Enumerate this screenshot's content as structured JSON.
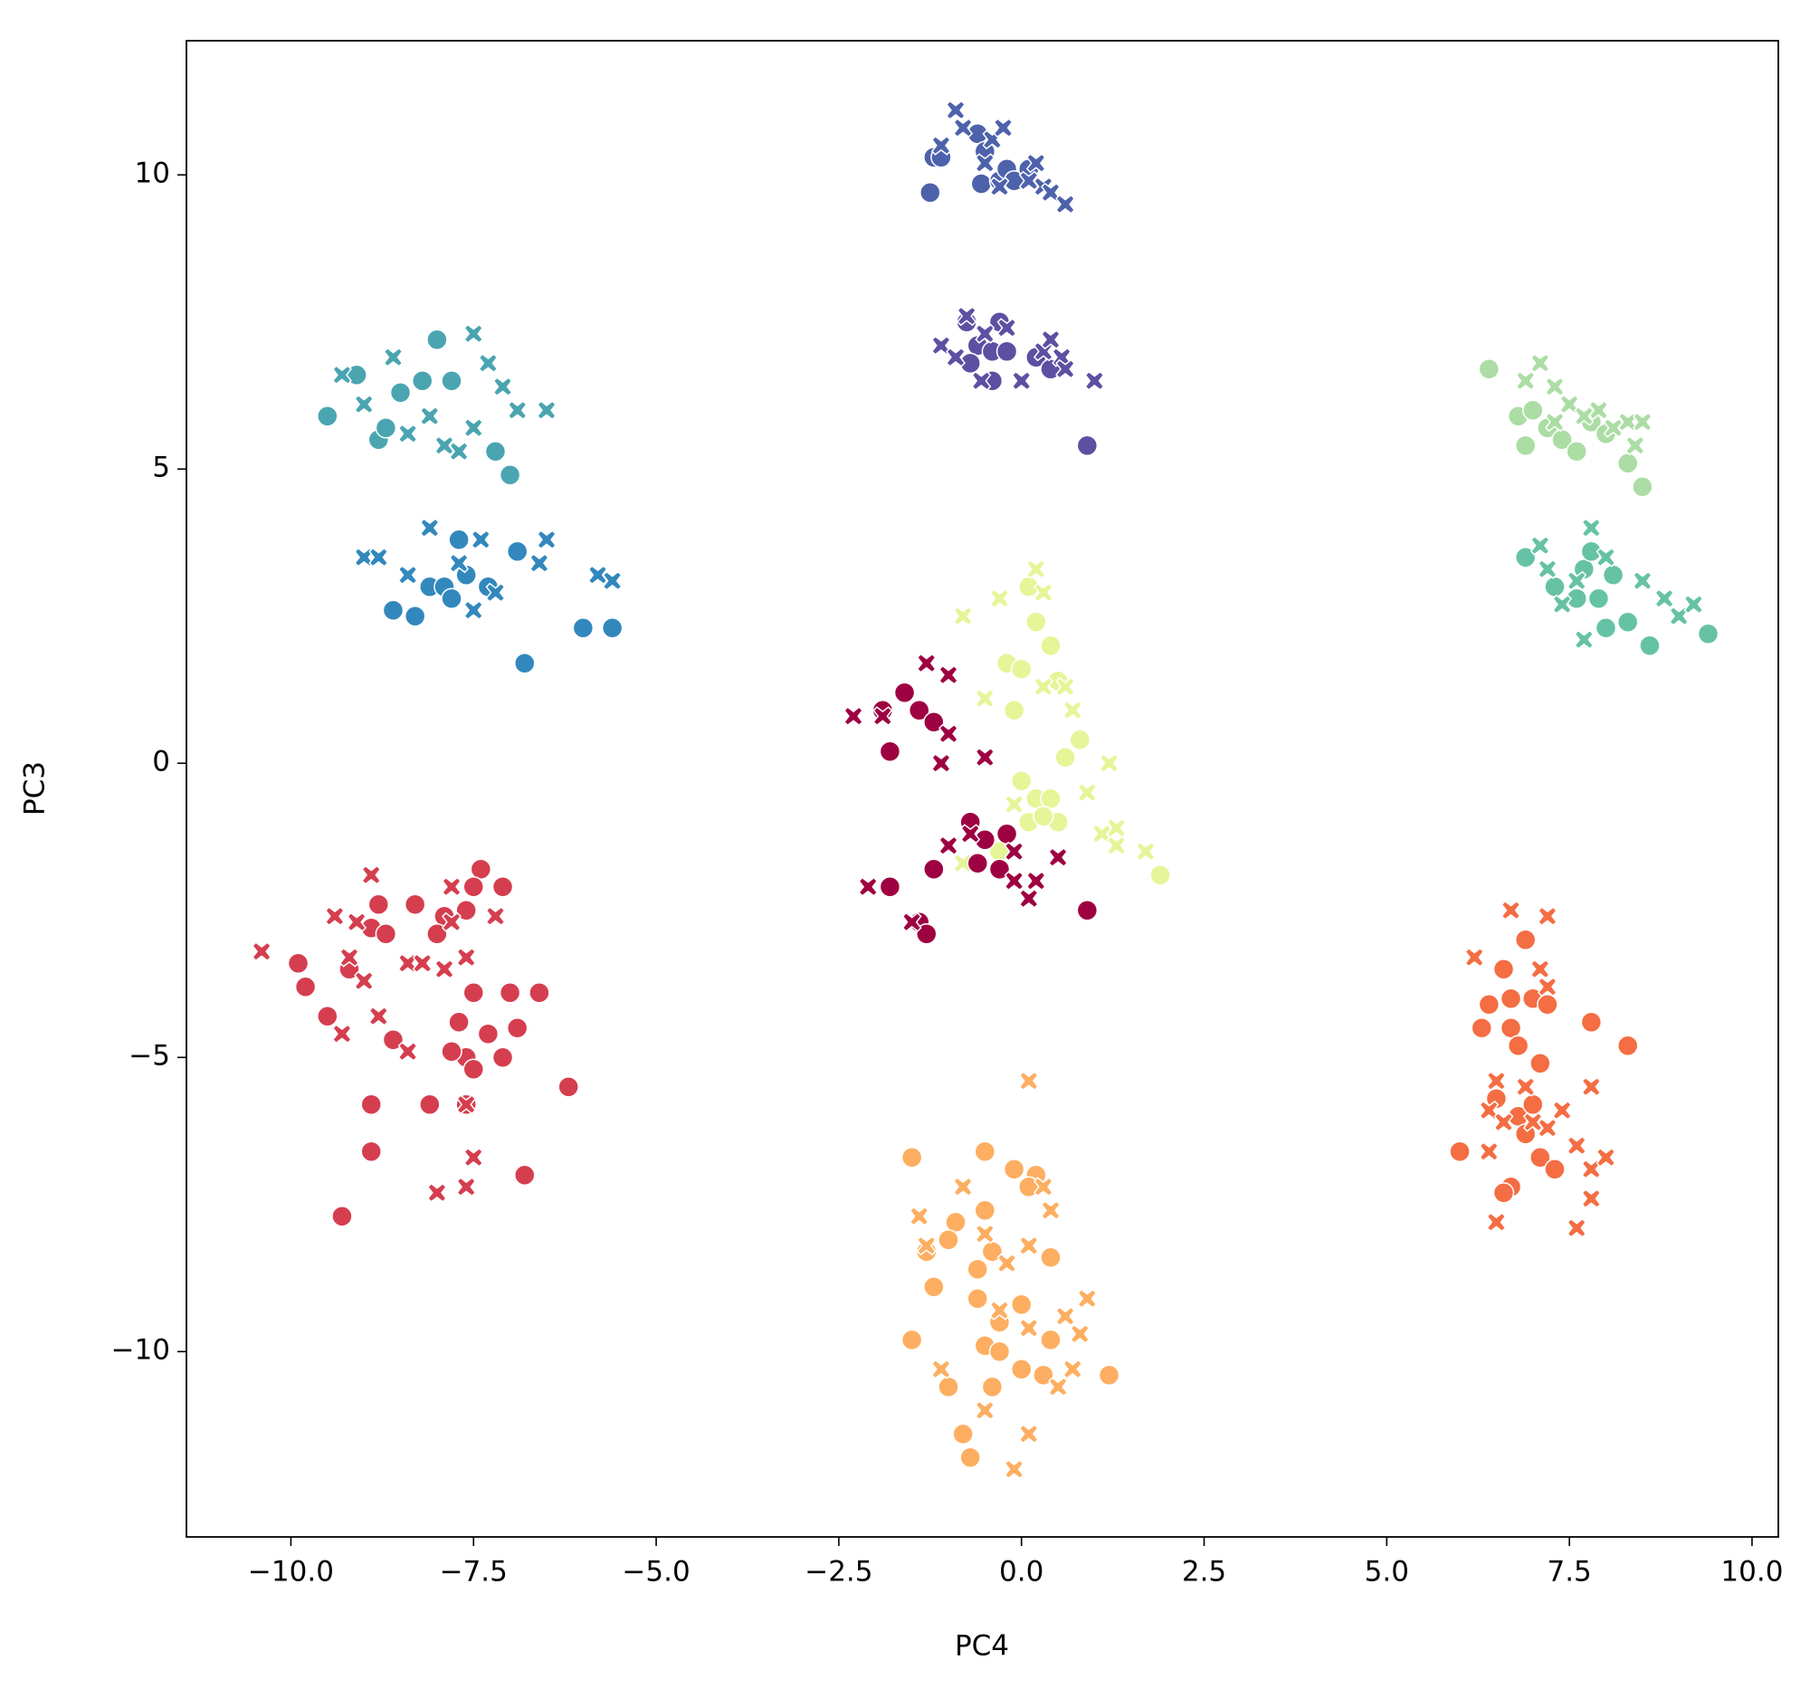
{
  "chart_data": {
    "type": "scatter",
    "x_label": "PC4",
    "y_label": "PC3",
    "xlim": [
      -11.43,
      10.36
    ],
    "ylim": [
      -13.15,
      12.28
    ],
    "xticks": [
      {
        "value": -10,
        "label": "−10.0"
      },
      {
        "value": -7.5,
        "label": "−7.5"
      },
      {
        "value": -5,
        "label": "−5.0"
      },
      {
        "value": -2.5,
        "label": "−2.5"
      },
      {
        "value": 0,
        "label": "0.0"
      },
      2.5,
      {
        "value": 5,
        "label": "5.0"
      },
      7.5,
      {
        "value": 10,
        "label": "10.0"
      }
    ],
    "yticks": [
      {
        "value": -10,
        "label": "−10"
      },
      {
        "value": -5,
        "label": "−5"
      },
      0,
      5,
      10
    ],
    "series": [
      {
        "color": "#4e62ab",
        "marker": "o",
        "x": [
          -1.25,
          -1.2,
          -1.1,
          -0.6,
          -0.5,
          -0.55,
          -0.3,
          -0.2,
          -0.1,
          0.1
        ],
        "y": [
          9.7,
          10.3,
          10.3,
          10.7,
          10.4,
          9.85,
          9.9,
          10.1,
          9.9,
          10.1
        ]
      },
      {
        "color": "#4e62ab",
        "marker": "x",
        "x": [
          -0.9,
          -0.8,
          -1.1,
          -0.4,
          -0.25,
          -0.5,
          0.2,
          0.1,
          0.3,
          0.4,
          0.6,
          -0.3
        ],
        "y": [
          11.1,
          10.8,
          10.5,
          10.6,
          10.8,
          10.2,
          10.2,
          9.9,
          9.8,
          9.7,
          9.5,
          9.8
        ]
      },
      {
        "color": "#5e4fa2",
        "marker": "o",
        "x": [
          -0.75,
          -0.3,
          -0.6,
          -0.4,
          -0.2,
          -0.4,
          0.2,
          0.4,
          0.9,
          -0.7
        ],
        "y": [
          7.5,
          7.5,
          7.1,
          7.0,
          7.0,
          6.5,
          6.9,
          6.7,
          5.4,
          6.8
        ]
      },
      {
        "color": "#5e4fa2",
        "marker": "x",
        "x": [
          -0.75,
          -1.1,
          -0.9,
          -0.55,
          0.0,
          0.3,
          0.55,
          0.6,
          1.0,
          0.4,
          -0.2,
          -0.5
        ],
        "y": [
          7.6,
          7.1,
          6.9,
          6.5,
          6.5,
          7.0,
          6.9,
          6.7,
          6.5,
          7.2,
          7.4,
          7.3
        ]
      },
      {
        "color": "#4aa5b1",
        "marker": "o",
        "x": [
          -9.5,
          -9.1,
          -8.8,
          -8.7,
          -8.5,
          -8.2,
          -8.0,
          -7.8,
          -7.2,
          -7.0
        ],
        "y": [
          5.9,
          6.6,
          5.5,
          5.7,
          6.3,
          6.5,
          7.2,
          6.5,
          5.3,
          4.9
        ]
      },
      {
        "color": "#4aa5b1",
        "marker": "x",
        "x": [
          -9.3,
          -9.0,
          -8.6,
          -8.4,
          -8.1,
          -7.9,
          -7.7,
          -7.5,
          -7.5,
          -7.3,
          -7.1,
          -6.9,
          -6.5
        ],
        "y": [
          6.6,
          6.1,
          6.9,
          5.6,
          5.9,
          5.4,
          5.3,
          7.3,
          5.7,
          6.8,
          6.4,
          6.0,
          6.0
        ]
      },
      {
        "color": "#3288bd",
        "marker": "o",
        "x": [
          -8.6,
          -8.3,
          -8.1,
          -7.9,
          -7.8,
          -7.7,
          -7.6,
          -7.3,
          -6.9,
          -6.8,
          -6.0,
          -5.6
        ],
        "y": [
          2.6,
          2.5,
          3.0,
          3.0,
          2.8,
          3.8,
          3.2,
          3.0,
          3.6,
          1.7,
          2.3,
          2.3
        ]
      },
      {
        "color": "#3288bd",
        "marker": "x",
        "x": [
          -9.0,
          -8.8,
          -8.4,
          -8.1,
          -7.7,
          -7.4,
          -7.5,
          -7.2,
          -6.6,
          -6.5,
          -5.8,
          -5.6
        ],
        "y": [
          3.5,
          3.5,
          3.2,
          4.0,
          3.4,
          3.8,
          2.6,
          2.9,
          3.4,
          3.8,
          3.2,
          3.1
        ]
      },
      {
        "color": "#abdda4",
        "marker": "o",
        "x": [
          6.4,
          6.8,
          6.9,
          7.2,
          7.4,
          7.6,
          7.8,
          8.0,
          8.3,
          8.5,
          7.0
        ],
        "y": [
          6.7,
          5.9,
          5.4,
          5.7,
          5.5,
          5.3,
          5.8,
          5.6,
          5.1,
          4.7,
          6.0
        ]
      },
      {
        "color": "#abdda4",
        "marker": "x",
        "x": [
          6.9,
          7.1,
          7.3,
          7.5,
          7.7,
          7.9,
          8.1,
          8.3,
          8.5,
          8.4,
          7.3
        ],
        "y": [
          6.5,
          6.8,
          6.4,
          6.1,
          5.9,
          6.0,
          5.7,
          5.8,
          5.8,
          5.4,
          5.8
        ]
      },
      {
        "color": "#66c2a5",
        "marker": "o",
        "x": [
          6.9,
          7.3,
          7.6,
          7.7,
          7.8,
          7.9,
          8.0,
          8.1,
          8.3,
          8.6,
          9.4
        ],
        "y": [
          3.5,
          3.0,
          2.8,
          3.3,
          3.6,
          2.8,
          2.3,
          3.2,
          2.4,
          2.0,
          2.2
        ]
      },
      {
        "color": "#66c2a5",
        "marker": "x",
        "x": [
          7.1,
          7.4,
          7.6,
          7.8,
          7.7,
          8.0,
          8.5,
          8.8,
          9.0,
          9.2,
          7.2
        ],
        "y": [
          3.7,
          2.7,
          3.1,
          4.0,
          2.1,
          3.5,
          3.1,
          2.8,
          2.5,
          2.7,
          3.3
        ]
      },
      {
        "color": "#e6f598",
        "marker": "o",
        "x": [
          -0.2,
          0.0,
          0.1,
          0.2,
          0.4,
          0.5,
          -0.1,
          0.8,
          0.6,
          0.0,
          0.2,
          0.4,
          0.1,
          0.5,
          -0.3,
          1.9,
          0.3
        ],
        "y": [
          1.7,
          1.6,
          3.0,
          2.4,
          2.0,
          1.4,
          0.9,
          0.4,
          0.1,
          -0.3,
          -0.6,
          -0.6,
          -1.0,
          -1.0,
          -1.5,
          -1.9,
          -0.9
        ]
      },
      {
        "color": "#e6f598",
        "marker": "x",
        "x": [
          -0.8,
          -0.3,
          0.3,
          0.2,
          -0.5,
          0.3,
          0.6,
          0.7,
          1.2,
          0.9,
          1.1,
          1.3,
          1.7,
          1.3,
          -0.1,
          -0.8
        ],
        "y": [
          2.5,
          2.8,
          2.9,
          3.3,
          1.1,
          1.3,
          1.3,
          0.9,
          0.0,
          -0.5,
          -1.2,
          -1.1,
          -1.5,
          -1.4,
          -0.7,
          -1.7
        ]
      },
      {
        "color": "#9e0142",
        "marker": "o",
        "x": [
          -1.9,
          -1.6,
          -1.4,
          -1.2,
          -1.8,
          -0.7,
          -0.5,
          -0.3,
          -0.6,
          -1.2,
          -1.4,
          -1.3,
          -1.8,
          0.9,
          -0.2
        ],
        "y": [
          0.9,
          1.2,
          0.9,
          0.7,
          0.2,
          -1.0,
          -1.3,
          -1.8,
          -1.7,
          -1.8,
          -2.7,
          -2.9,
          -2.1,
          -2.5,
          -1.2
        ]
      },
      {
        "color": "#9e0142",
        "marker": "x",
        "x": [
          -2.3,
          -1.9,
          -1.3,
          -1.0,
          -1.0,
          -1.1,
          -0.5,
          -1.0,
          -0.7,
          -0.1,
          -0.1,
          0.2,
          0.1,
          -2.1,
          -1.5,
          0.5
        ],
        "y": [
          0.8,
          0.8,
          1.7,
          1.5,
          0.5,
          0.0,
          0.1,
          -1.4,
          -1.2,
          -1.5,
          -2.0,
          -2.0,
          -2.3,
          -2.1,
          -2.7,
          -1.6
        ]
      },
      {
        "color": "#d53e4f",
        "marker": "o",
        "x": [
          -9.9,
          -9.8,
          -9.5,
          -9.2,
          -8.9,
          -8.8,
          -8.7,
          -8.6,
          -8.3,
          -7.9,
          -7.7,
          -7.6,
          -7.5,
          -7.5,
          -7.3,
          -7.1,
          -7.0,
          -6.9,
          -6.6,
          -7.4,
          -7.5,
          -7.1,
          -7.6,
          -8.1,
          -8.9,
          -8.9,
          -9.3,
          -6.8,
          -6.2,
          -7.8,
          -7.6,
          -8.0
        ],
        "y": [
          -3.4,
          -3.8,
          -4.3,
          -3.5,
          -2.8,
          -2.4,
          -2.9,
          -4.7,
          -2.4,
          -2.6,
          -4.4,
          -5.0,
          -5.2,
          -3.9,
          -4.6,
          -5.0,
          -3.9,
          -4.5,
          -3.9,
          -1.8,
          -2.1,
          -2.1,
          -2.5,
          -5.8,
          -5.8,
          -6.6,
          -7.7,
          -7.0,
          -5.5,
          -4.9,
          -5.8,
          -2.9
        ]
      },
      {
        "color": "#d53e4f",
        "marker": "x",
        "x": [
          -10.4,
          -9.4,
          -9.1,
          -8.9,
          -8.4,
          -8.2,
          -7.9,
          -7.8,
          -7.8,
          -7.6,
          -7.2,
          -9.2,
          -9.3,
          -8.8,
          -8.4,
          -8.0,
          -7.6,
          -7.5,
          -7.6,
          -9.0
        ],
        "y": [
          -3.2,
          -2.6,
          -2.7,
          -1.9,
          -3.4,
          -3.4,
          -3.5,
          -2.1,
          -2.7,
          -3.3,
          -2.6,
          -3.3,
          -4.6,
          -4.3,
          -4.9,
          -7.3,
          -7.2,
          -6.7,
          -5.8,
          -3.7
        ]
      },
      {
        "color": "#f46d43",
        "marker": "o",
        "x": [
          6.0,
          6.3,
          6.4,
          6.6,
          6.7,
          6.7,
          6.9,
          7.0,
          6.5,
          6.8,
          7.0,
          6.9,
          7.1,
          6.7,
          6.6,
          7.3,
          7.1,
          7.2,
          7.8,
          8.3,
          6.8
        ],
        "y": [
          -6.6,
          -4.5,
          -4.1,
          -3.5,
          -4.0,
          -4.5,
          -3.0,
          -4.0,
          -5.7,
          -6.0,
          -5.8,
          -6.3,
          -6.7,
          -7.2,
          -7.3,
          -6.9,
          -5.1,
          -4.1,
          -4.4,
          -4.8,
          -4.8
        ]
      },
      {
        "color": "#f46d43",
        "marker": "x",
        "x": [
          6.2,
          6.7,
          7.2,
          7.1,
          7.2,
          6.4,
          6.6,
          7.0,
          7.2,
          7.4,
          7.6,
          7.8,
          8.0,
          7.8,
          7.8,
          7.6,
          6.5,
          6.4,
          6.9,
          6.5
        ],
        "y": [
          -3.3,
          -2.5,
          -2.6,
          -3.5,
          -3.8,
          -5.9,
          -6.1,
          -6.1,
          -6.2,
          -5.9,
          -6.5,
          -6.9,
          -6.7,
          -5.5,
          -7.4,
          -7.9,
          -7.8,
          -6.6,
          -5.5,
          -5.4
        ]
      },
      {
        "color": "#fdae61",
        "marker": "o",
        "x": [
          -1.5,
          -0.5,
          -0.1,
          0.2,
          0.1,
          -0.9,
          -0.5,
          -1.3,
          -1.0,
          -0.6,
          -0.4,
          0.4,
          -1.2,
          -0.6,
          0.0,
          -1.5,
          -0.5,
          -0.3,
          0.0,
          -0.4,
          -1.0,
          0.4,
          1.2,
          -0.8,
          -0.7,
          -0.3,
          0.3
        ],
        "y": [
          -6.7,
          -6.6,
          -6.9,
          -7.0,
          -7.2,
          -7.8,
          -7.6,
          -8.3,
          -8.1,
          -8.6,
          -8.3,
          -8.4,
          -8.9,
          -9.1,
          -9.2,
          -9.8,
          -9.9,
          -10.0,
          -10.3,
          -10.6,
          -10.6,
          -9.8,
          -10.4,
          -11.4,
          -11.8,
          -9.5,
          -10.4
        ]
      },
      {
        "color": "#fdae61",
        "marker": "x",
        "x": [
          -1.4,
          -1.3,
          -0.8,
          -0.5,
          -0.2,
          0.1,
          0.3,
          0.4,
          -0.3,
          0.1,
          0.6,
          0.9,
          0.8,
          -0.5,
          0.1,
          -0.1,
          0.1,
          0.7,
          0.5,
          -1.1
        ],
        "y": [
          -7.7,
          -8.2,
          -7.2,
          -8.0,
          -8.5,
          -8.2,
          -7.2,
          -7.6,
          -9.3,
          -9.6,
          -9.4,
          -9.1,
          -9.7,
          -11.0,
          -11.4,
          -12.0,
          -5.4,
          -10.3,
          -10.6,
          -10.3
        ]
      }
    ]
  }
}
